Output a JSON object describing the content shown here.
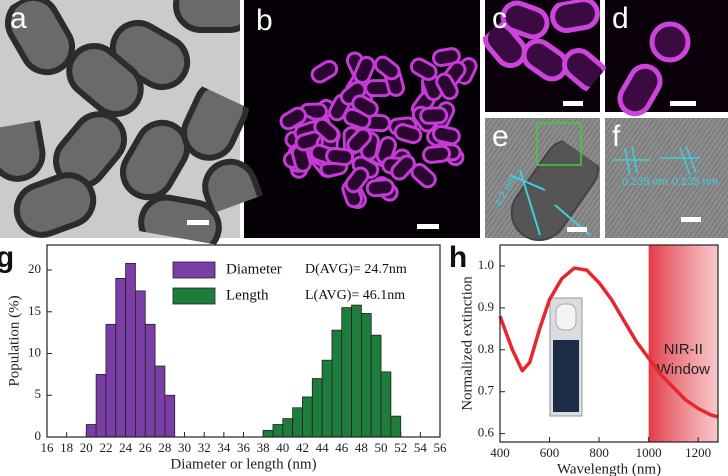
{
  "image_panels": [
    {
      "label": "a"
    },
    {
      "label": "b"
    },
    {
      "label": "c"
    },
    {
      "label": "d"
    },
    {
      "label": "e",
      "annotations": [
        "4.2 nm"
      ]
    },
    {
      "label": "f",
      "annotations": [
        "0.235 nm",
        "0.235 nm"
      ]
    }
  ],
  "chart_data": [
    {
      "type": "histogram",
      "panel_label": "g",
      "x_label": "Diameter or length (nm)",
      "y_label": "Population (%)",
      "xlim": [
        16,
        56
      ],
      "xticks": [
        16,
        18,
        20,
        22,
        24,
        26,
        28,
        30,
        32,
        34,
        36,
        38,
        40,
        42,
        44,
        46,
        48,
        50,
        52,
        54,
        56
      ],
      "ylim": [
        0,
        23
      ],
      "yticks": [
        0,
        5,
        10,
        15,
        20
      ],
      "series": [
        {
          "name": "Diameter",
          "color": "#7a3ea6",
          "annotation": "D(AVG)= 24.7nm",
          "bins": [
            20,
            21,
            22,
            23,
            24,
            25,
            26,
            27,
            28,
            29
          ],
          "values": [
            1.5,
            7.5,
            13.5,
            19,
            20.8,
            17.5,
            13.5,
            8.5,
            5
          ]
        },
        {
          "name": "Length",
          "color": "#1e7d3c",
          "annotation": "L(AVG)= 46.1nm",
          "bins": [
            38,
            39,
            40,
            41,
            42,
            43,
            44,
            45,
            46,
            47,
            48,
            49,
            50,
            51,
            52
          ],
          "values": [
            0.8,
            1.5,
            2.2,
            3.5,
            4.8,
            7,
            9.2,
            12.8,
            15.5,
            15.8,
            14.8,
            12.2,
            7.8,
            2.5
          ]
        }
      ]
    },
    {
      "type": "line",
      "panel_label": "h",
      "x_label": "Wavelength (nm)",
      "y_label": "Normalized extinction",
      "xlim": [
        400,
        1280
      ],
      "xticks": [
        400,
        600,
        800,
        1000,
        1200
      ],
      "ylim": [
        0.58,
        1.05
      ],
      "yticks": [
        0.6,
        0.7,
        0.8,
        0.9,
        {
          "value": 1,
          "label": "1.0"
        }
      ],
      "shaded_region": {
        "xlim": [
          1000,
          1280
        ],
        "label": [
          "NIR-II",
          "Window"
        ]
      },
      "x": [
        400,
        450,
        490,
        520,
        560,
        600,
        650,
        700,
        750,
        800,
        850,
        900,
        950,
        1000,
        1050,
        1100,
        1150,
        1200,
        1250,
        1280
      ],
      "series": [
        {
          "color": "#e8262e",
          "values": [
            0.88,
            0.8,
            0.75,
            0.77,
            0.85,
            0.92,
            0.97,
            0.995,
            0.99,
            0.96,
            0.92,
            0.87,
            0.82,
            0.78,
            0.74,
            0.71,
            0.68,
            0.66,
            0.645,
            0.64
          ]
        }
      ]
    }
  ]
}
